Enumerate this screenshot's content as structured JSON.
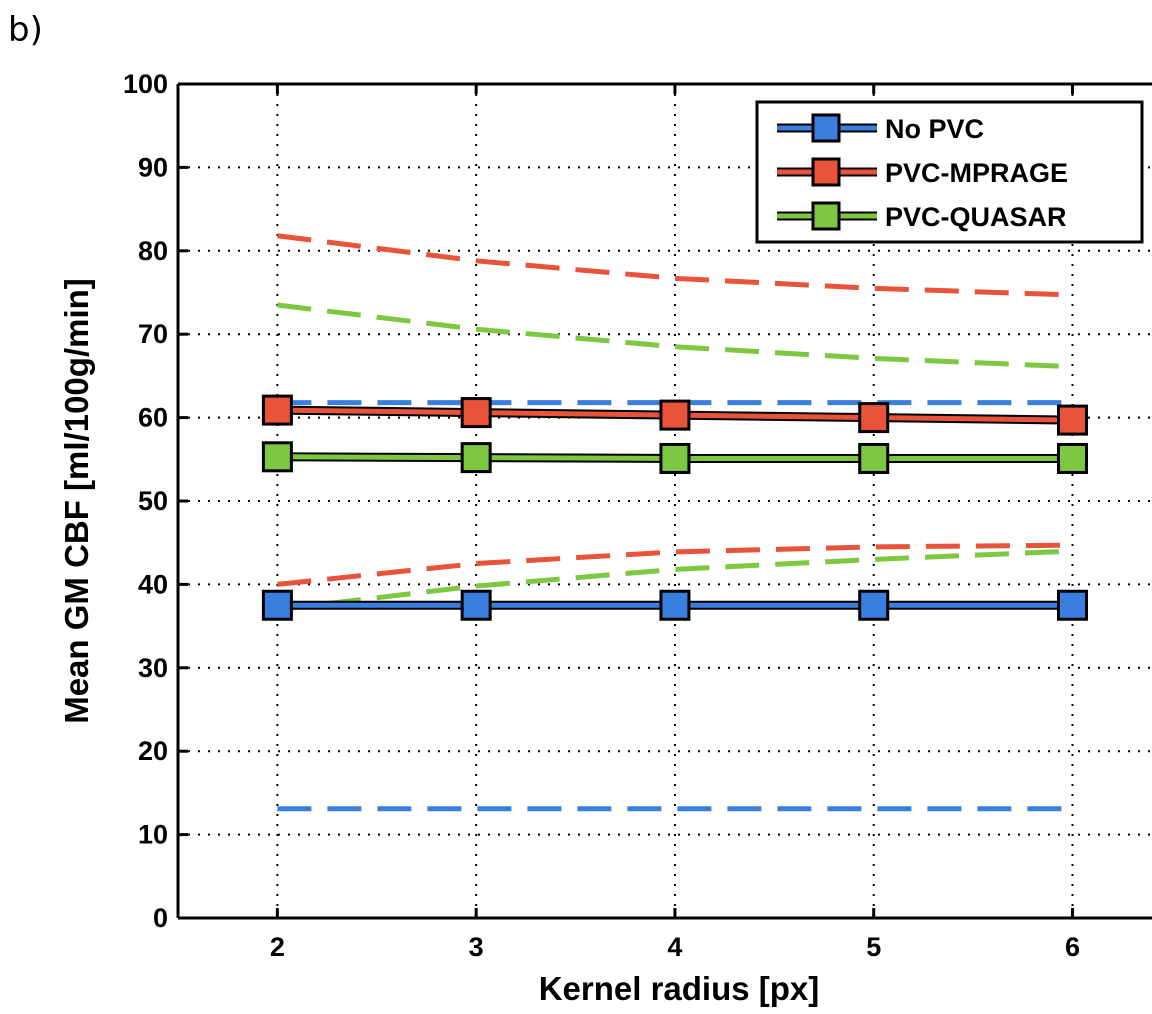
{
  "panel_label": "b)",
  "colors": {
    "no_pvc": "#3a7fe0",
    "pvc_mprage": "#e8533a",
    "pvc_quasar": "#7dc840",
    "axis": "#000000",
    "grid": "#000000"
  },
  "chart_data": {
    "type": "line",
    "title": "",
    "xlabel": "Kernel radius [px]",
    "ylabel": "Mean GM CBF [ml/100g/min]",
    "xlim": [
      1.5,
      6.4
    ],
    "ylim": [
      0,
      100
    ],
    "x": [
      2,
      3,
      4,
      5,
      6
    ],
    "xticks": [
      2,
      3,
      4,
      5,
      6
    ],
    "yticks": [
      0,
      10,
      20,
      30,
      40,
      50,
      60,
      70,
      80,
      90,
      100
    ],
    "grid": true,
    "legend_position": "top-right",
    "series": [
      {
        "name": "No PVC",
        "color": "#3a7fe0",
        "values": [
          37.5,
          37.5,
          37.5,
          37.5,
          37.5
        ],
        "upper": [
          61.8,
          61.8,
          61.8,
          61.8,
          61.8
        ],
        "lower": [
          13.1,
          13.1,
          13.1,
          13.1,
          13.1
        ]
      },
      {
        "name": "PVC-MPRAGE",
        "color": "#e8533a",
        "values": [
          60.9,
          60.6,
          60.3,
          60.0,
          59.7
        ],
        "upper": [
          81.8,
          78.8,
          76.7,
          75.5,
          74.7
        ],
        "lower": [
          40.0,
          42.5,
          43.9,
          44.5,
          44.7
        ]
      },
      {
        "name": "PVC-QUASAR",
        "color": "#7dc840",
        "values": [
          55.3,
          55.2,
          55.1,
          55.1,
          55.1
        ],
        "upper": [
          73.5,
          70.6,
          68.5,
          67.1,
          66.1
        ],
        "lower": [
          37.0,
          39.8,
          41.8,
          43.0,
          44.0
        ]
      }
    ]
  }
}
